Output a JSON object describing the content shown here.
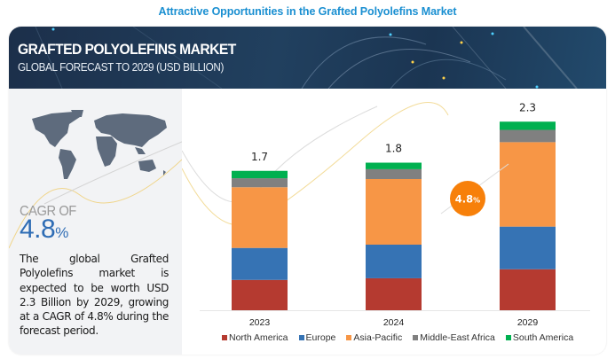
{
  "page": {
    "heading": "Attractive Opportunities in the Grafted Polyolefins Market"
  },
  "banner": {
    "title": "GRAFTED POLYOLEFINS MARKET",
    "subtitle": "GLOBAL FORECAST TO 2029 (USD BILLION)"
  },
  "summary": {
    "cagr_label": "CAGR OF",
    "cagr_value": "4.8",
    "cagr_unit": "%",
    "description": "The global Grafted Polyolefins market is expected to be worth USD 2.3 Billion by 2029, growing at a CAGR of 4.8% during the forecast period."
  },
  "colors": {
    "title": "#1a8fd1",
    "cagr_value": "#2f6db5",
    "cagr_bubble": "#f7800a",
    "north_america": "#b53a30",
    "europe": "#3673b4",
    "asia_pacific": "#f79646",
    "middle_east_africa": "#808080",
    "south_america": "#00b050"
  },
  "chart_data": {
    "type": "bar",
    "stacked": true,
    "title": "Grafted Polyolefins Market, Global Forecast to 2029 (USD Billion)",
    "xlabel": "",
    "ylabel": "USD Billion",
    "categories": [
      "2023",
      "2024",
      "2029"
    ],
    "totals": [
      "1.7",
      "1.8",
      "2.3"
    ],
    "ylim": [
      0,
      2.3
    ],
    "grid": false,
    "legend_position": "bottom",
    "annotation": {
      "text": "4.8",
      "unit": "%",
      "meaning": "CAGR 2024-2029"
    },
    "series": [
      {
        "name": "North America",
        "color": "#b53a30",
        "values": [
          0.37,
          0.39,
          0.5
        ]
      },
      {
        "name": "Europe",
        "color": "#3673b4",
        "values": [
          0.39,
          0.41,
          0.52
        ]
      },
      {
        "name": "Asia-Pacific",
        "color": "#f79646",
        "values": [
          0.74,
          0.8,
          1.03
        ]
      },
      {
        "name": "Middle-East Africa",
        "color": "#808080",
        "values": [
          0.11,
          0.12,
          0.15
        ]
      },
      {
        "name": "South America",
        "color": "#00b050",
        "values": [
          0.09,
          0.08,
          0.1
        ]
      }
    ]
  }
}
